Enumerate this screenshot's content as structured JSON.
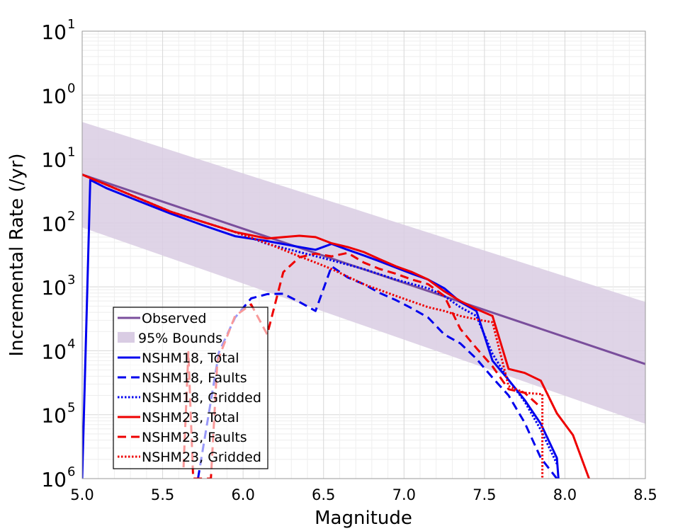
{
  "chart_data": {
    "type": "line",
    "xlabel": "Magnitude",
    "ylabel": "Incremental Rate (/yr)",
    "xlim": [
      5.0,
      8.5
    ],
    "ylim": [
      1e-06,
      10
    ],
    "y_scale": "log",
    "grid": true,
    "legend_position": "lower-left",
    "x_ticks": [
      "5.0",
      "5.5",
      "6.0",
      "6.5",
      "7.0",
      "7.5",
      "8.0",
      "8.5"
    ],
    "x_tick_values": [
      5.0,
      5.5,
      6.0,
      6.5,
      7.0,
      7.5,
      8.0,
      8.5
    ],
    "y_ticks": [
      {
        "base": "10",
        "exp": "1",
        "value": 10
      },
      {
        "base": "10",
        "exp": "0",
        "value": 1
      },
      {
        "base": "10",
        "exp": "1",
        "value": 0.1
      },
      {
        "base": "10",
        "exp": "2",
        "value": 0.01
      },
      {
        "base": "10",
        "exp": "3",
        "value": 0.001
      },
      {
        "base": "10",
        "exp": "4",
        "value": 0.0001
      },
      {
        "base": "10",
        "exp": "5",
        "value": 1e-05
      },
      {
        "base": "10",
        "exp": "6",
        "value": 1e-06
      }
    ],
    "band": {
      "name": "95% Bounds",
      "color": "#d9cce3",
      "x": [
        5.0,
        8.5
      ],
      "upper": [
        0.38,
        0.00058
      ],
      "lower": [
        0.0085,
        7.2e-06
      ]
    },
    "series": [
      {
        "name": "Observed",
        "color": "#7a4e9c",
        "style": "solid",
        "x": [
          5.0,
          8.5
        ],
        "y": [
          0.057,
          6.2e-05
        ]
      },
      {
        "name": "NSHM18, Total",
        "color": "#0000ee",
        "style": "solid",
        "x": [
          5.0,
          5.05,
          5.15,
          5.35,
          5.55,
          5.75,
          5.95,
          6.15,
          6.35,
          6.45,
          6.55,
          6.65,
          6.75,
          6.85,
          6.95,
          7.05,
          7.15,
          7.25,
          7.35,
          7.45,
          7.55,
          7.65,
          7.75,
          7.85,
          7.95,
          7.96
        ],
        "y": [
          1e-06,
          0.047,
          0.035,
          0.022,
          0.014,
          0.0092,
          0.0062,
          0.0052,
          0.0042,
          0.0038,
          0.0047,
          0.0038,
          0.0031,
          0.0025,
          0.002,
          0.0016,
          0.0013,
          0.00095,
          0.00058,
          0.00042,
          7e-05,
          3.5e-05,
          1.7e-05,
          7.2e-06,
          2.1e-06,
          1e-06
        ]
      },
      {
        "name": "NSHM18, Faults",
        "color": "#0000ee",
        "style": "dashed",
        "x": [
          5.72,
          5.85,
          5.95,
          6.05,
          6.15,
          6.25,
          6.35,
          6.45,
          6.55,
          6.65,
          6.75,
          6.85,
          6.95,
          7.05,
          7.15,
          7.25,
          7.35,
          7.45,
          7.55,
          7.65,
          7.75,
          7.85,
          7.95
        ],
        "y": [
          1e-06,
          9.5e-05,
          0.00033,
          0.00066,
          0.00077,
          0.00078,
          0.00058,
          0.00042,
          0.0021,
          0.0014,
          0.0011,
          0.0008,
          0.00062,
          0.00046,
          0.00033,
          0.00018,
          0.00013,
          7.5e-05,
          3.8e-05,
          2e-05,
          7.5e-06,
          2.1e-06,
          1e-06
        ]
      },
      {
        "name": "NSHM18, Gridded",
        "color": "#0000ee",
        "style": "dotted",
        "x": [
          5.0,
          5.55,
          5.95,
          6.15,
          6.35,
          6.55,
          6.75,
          6.95,
          7.15,
          7.25,
          7.35,
          7.45,
          7.55,
          7.65,
          7.75,
          7.85,
          7.95
        ],
        "y": [
          0.057,
          0.015,
          0.0072,
          0.0047,
          0.0035,
          0.0026,
          0.0019,
          0.0013,
          0.00095,
          0.00072,
          0.00048,
          0.00035,
          9e-05,
          3.5e-05,
          1.6e-05,
          5.8e-06,
          1.7e-06
        ]
      },
      {
        "name": "NSHM23, Total",
        "color": "#ee0000",
        "style": "solid",
        "x": [
          5.0,
          5.55,
          5.95,
          6.15,
          6.25,
          6.35,
          6.45,
          6.55,
          6.65,
          6.75,
          6.85,
          6.95,
          7.05,
          7.15,
          7.25,
          7.35,
          7.45,
          7.55,
          7.65,
          7.75,
          7.85,
          7.95,
          8.05,
          8.15
        ],
        "y": [
          0.057,
          0.015,
          0.0072,
          0.0057,
          0.006,
          0.0063,
          0.006,
          0.0048,
          0.0042,
          0.0035,
          0.0027,
          0.0021,
          0.0017,
          0.0013,
          0.00085,
          0.0006,
          0.00045,
          0.00035,
          5.2e-05,
          4.5e-05,
          3.4e-05,
          1.05e-05,
          4.8e-06,
          1e-06
        ]
      },
      {
        "name": "NSHM23, Faults",
        "color": "#ee0000",
        "style": "dashed",
        "x": [
          5.63,
          5.66,
          5.69,
          5.8,
          5.84,
          5.95,
          6.05,
          6.15,
          6.25,
          6.35,
          6.45,
          6.55,
          6.65,
          6.75,
          6.85,
          6.95,
          7.05,
          7.15,
          7.25,
          7.35,
          7.45,
          7.55,
          7.65,
          7.75,
          7.85
        ],
        "y": [
          1.5e-06,
          9.5e-05,
          1e-06,
          1e-06,
          6.8e-05,
          0.00035,
          0.00053,
          0.00018,
          0.0017,
          0.0029,
          0.0033,
          0.003,
          0.0034,
          0.0024,
          0.0019,
          0.0016,
          0.0013,
          0.0011,
          0.00072,
          0.00022,
          0.00011,
          5.7e-05,
          2.5e-05,
          2.2e-05,
          1.3e-05
        ]
      },
      {
        "name": "NSHM23, Gridded",
        "color": "#ee0000",
        "style": "dotted",
        "x": [
          5.0,
          5.55,
          5.95,
          6.15,
          6.35,
          6.45,
          6.55,
          6.75,
          6.95,
          7.15,
          7.25,
          7.35,
          7.45,
          7.55,
          7.65,
          7.75,
          7.85,
          7.86,
          7.86
        ],
        "y": [
          0.057,
          0.015,
          0.0072,
          0.0048,
          0.003,
          0.0024,
          0.0019,
          0.0011,
          0.00072,
          0.00048,
          0.00042,
          0.00035,
          0.00031,
          0.00028,
          2.8e-05,
          2.2e-05,
          2.1e-05,
          2.1e-05,
          1e-06
        ]
      }
    ],
    "legend": [
      {
        "label": "Observed",
        "color": "#7a4e9c",
        "style": "solid"
      },
      {
        "label": "95% Bounds",
        "color": "#d9cce3",
        "style": "patch"
      },
      {
        "label": "NSHM18, Total",
        "color": "#0000ee",
        "style": "solid"
      },
      {
        "label": "NSHM18, Faults",
        "color": "#0000ee",
        "style": "dashed"
      },
      {
        "label": "NSHM18, Gridded",
        "color": "#0000ee",
        "style": "dotted"
      },
      {
        "label": "NSHM23, Total",
        "color": "#ee0000",
        "style": "solid"
      },
      {
        "label": "NSHM23, Faults",
        "color": "#ee0000",
        "style": "dashed"
      },
      {
        "label": "NSHM23, Gridded",
        "color": "#ee0000",
        "style": "dotted"
      }
    ]
  }
}
